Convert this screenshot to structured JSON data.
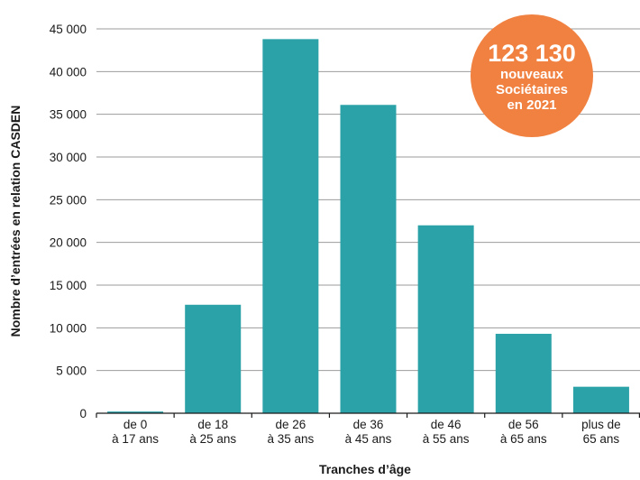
{
  "chart_data": {
    "type": "bar",
    "categories": [
      [
        "de 0",
        "à 17 ans"
      ],
      [
        "de 18",
        "à 25 ans"
      ],
      [
        "de 26",
        "à 35 ans"
      ],
      [
        "de 36",
        "à 45 ans"
      ],
      [
        "de 46",
        "à 55 ans"
      ],
      [
        "de 56",
        "à 65 ans"
      ],
      [
        "plus de",
        "65 ans"
      ]
    ],
    "values": [
      200,
      12700,
      43800,
      36100,
      22000,
      9300,
      3100
    ],
    "xlabel": "Tranches d’âge",
    "ylabel": "Nombre d’entrées en relation CASDEN",
    "ylim": [
      0,
      45000
    ],
    "yticks": [
      0,
      5000,
      10000,
      15000,
      20000,
      25000,
      30000,
      35000,
      40000,
      45000
    ],
    "ytick_labels": [
      "0",
      "5 000",
      "10 000",
      "15 000",
      "20 000",
      "25 000",
      "30 000",
      "35 000",
      "40 000",
      "45 000"
    ],
    "grid": true,
    "legend": "none",
    "bar_color": "#2aa2a8",
    "grid_color": "#9b9b9b"
  },
  "badge": {
    "number": "123 130",
    "lines": [
      "nouveaux",
      "Sociétaires",
      "en 2021"
    ],
    "color": "#f08141"
  }
}
